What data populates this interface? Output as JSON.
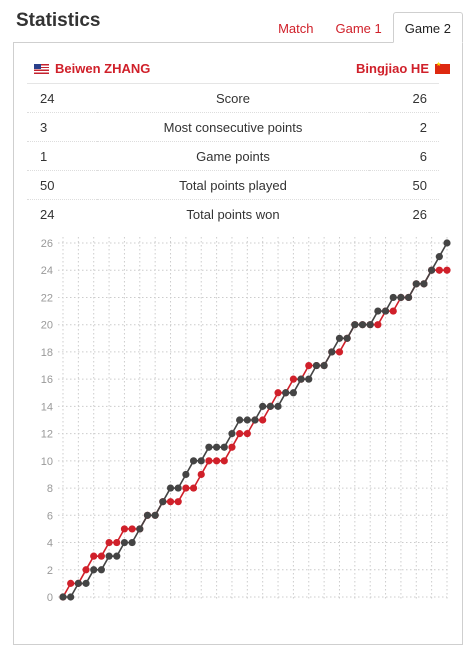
{
  "header": {
    "title": "Statistics",
    "tabs": [
      {
        "label": "Match",
        "active": false
      },
      {
        "label": "Game 1",
        "active": false
      },
      {
        "label": "Game 2",
        "active": true
      }
    ]
  },
  "players": {
    "left": {
      "name": "Beiwen ZHANG",
      "flag": "us-flag-icon"
    },
    "right": {
      "name": "Bingjiao HE",
      "flag": "cn-flag-icon"
    }
  },
  "stats": [
    {
      "left": "24",
      "label": "Score",
      "right": "26"
    },
    {
      "left": "3",
      "label": "Most consecutive points",
      "right": "2"
    },
    {
      "left": "1",
      "label": "Game points",
      "right": "6"
    },
    {
      "left": "50",
      "label": "Total points played",
      "right": "50"
    },
    {
      "left": "24",
      "label": "Total points won",
      "right": "26"
    }
  ],
  "colors": {
    "accent": "#d0202a",
    "left_series": "#d0202a",
    "right_series": "#444444",
    "grid": "#cccccc"
  },
  "chart_data": {
    "type": "line",
    "y_ticks": [
      0,
      2,
      4,
      6,
      8,
      10,
      12,
      14,
      16,
      18,
      20,
      22,
      24,
      26
    ],
    "ylim": [
      0,
      26
    ],
    "grid": true,
    "series": [
      {
        "name": "Beiwen ZHANG",
        "color": "#d0202a",
        "values": [
          0,
          1,
          1,
          2,
          3,
          3,
          4,
          4,
          5,
          5,
          5,
          6,
          6,
          7,
          7,
          7,
          8,
          8,
          9,
          10,
          10,
          10,
          11,
          12,
          12,
          13,
          13,
          14,
          15,
          15,
          16,
          16,
          17,
          17,
          17,
          18,
          18,
          19,
          20,
          20,
          20,
          20,
          21,
          21,
          22,
          22,
          23,
          23,
          24,
          24,
          24
        ]
      },
      {
        "name": "Bingjiao HE",
        "color": "#444444",
        "values": [
          0,
          0,
          1,
          1,
          2,
          2,
          3,
          3,
          4,
          4,
          5,
          6,
          6,
          7,
          8,
          8,
          9,
          10,
          10,
          11,
          11,
          11,
          12,
          13,
          13,
          13,
          14,
          14,
          14,
          15,
          15,
          16,
          16,
          17,
          17,
          18,
          19,
          19,
          20,
          20,
          20,
          21,
          21,
          22,
          22,
          22,
          23,
          23,
          24,
          25,
          26
        ]
      }
    ]
  }
}
